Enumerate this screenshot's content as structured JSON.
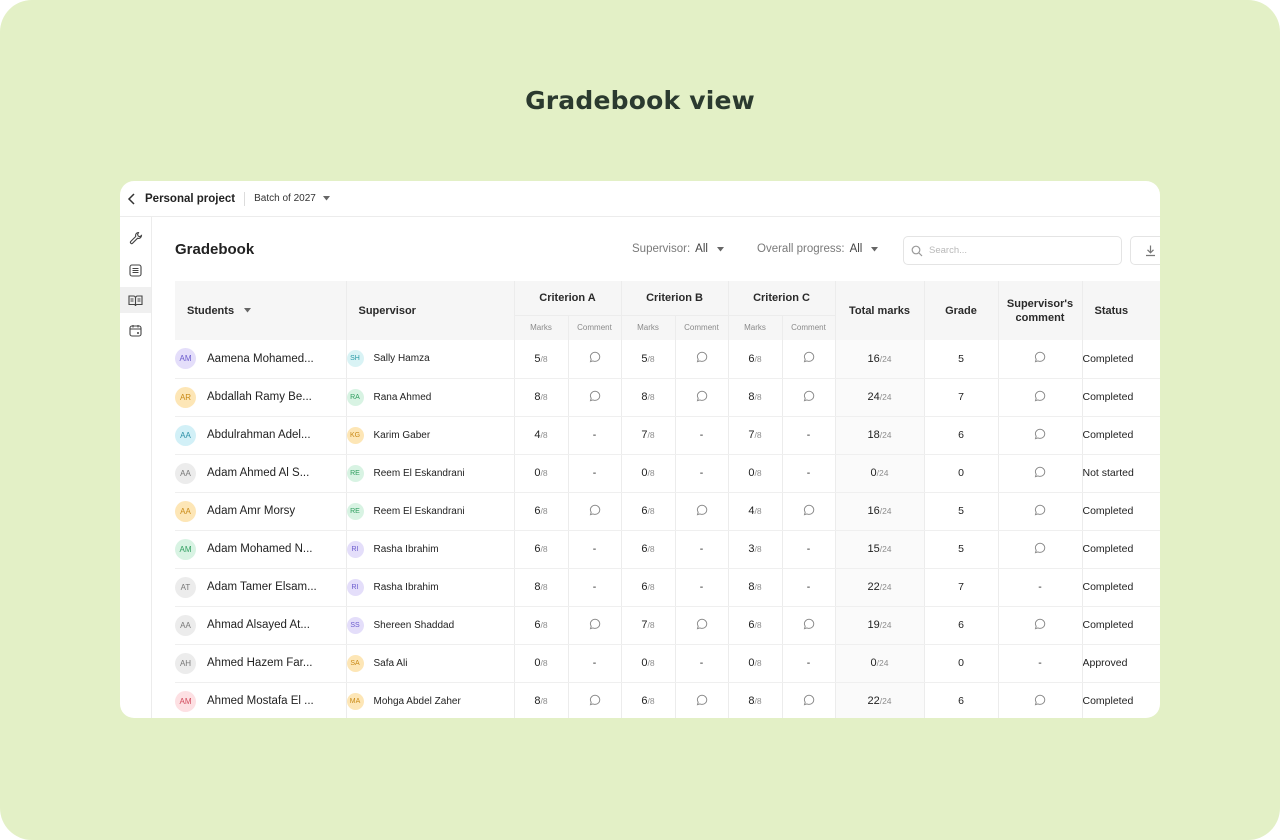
{
  "hero_title": "Gradebook view",
  "topbar": {
    "project": "Personal project",
    "batch": "Batch of 2027"
  },
  "rail": {
    "icons": [
      "wrench-icon",
      "list-icon",
      "book-icon",
      "calendar-icon"
    ],
    "active_index": 2
  },
  "section_title": "Gradebook",
  "filters": {
    "supervisor": {
      "label": "Supervisor:",
      "value": "All"
    },
    "progress": {
      "label": "Overall progress:",
      "value": "All"
    }
  },
  "search": {
    "placeholder": "Search..."
  },
  "table": {
    "headers": {
      "students": "Students",
      "supervisor": "Supervisor",
      "criterion_a": "Criterion A",
      "criterion_b": "Criterion B",
      "criterion_c": "Criterion C",
      "marks": "Marks",
      "comment": "Comment",
      "total": "Total marks",
      "grade": "Grade",
      "supervisor_comment": "Supervisor's comment",
      "status": "Status"
    },
    "criterion_max": "/8",
    "total_max": "/24",
    "rows": [
      {
        "initials": "AM",
        "avatar_color": "#e4defa",
        "avatar_text": "#6a5acd",
        "name": "Aamena Mohamed...",
        "sup_initials": "SH",
        "sup_color": "#d9f3f5",
        "sup_text": "#2a9aa6",
        "supervisor": "Sally Hamza",
        "a": "5",
        "a_c": true,
        "b": "5",
        "b_c": true,
        "c": "6",
        "c_c": true,
        "total": "16",
        "grade": "5",
        "sup_c": true,
        "status": "Completed"
      },
      {
        "initials": "AR",
        "avatar_color": "#fde6b6",
        "avatar_text": "#c98a17",
        "name": "Abdallah Ramy Be...",
        "sup_initials": "RA",
        "sup_color": "#d8f3e3",
        "sup_text": "#2f9e5f",
        "supervisor": "Rana Ahmed",
        "a": "8",
        "a_c": true,
        "b": "8",
        "b_c": true,
        "c": "8",
        "c_c": true,
        "total": "24",
        "grade": "7",
        "sup_c": true,
        "status": "Completed"
      },
      {
        "initials": "AA",
        "avatar_color": "#d2f0f7",
        "avatar_text": "#2b8fa6",
        "name": "Abdulrahman Adel...",
        "sup_initials": "KG",
        "sup_color": "#fde6b6",
        "sup_text": "#c98a17",
        "supervisor": "Karim Gaber",
        "a": "4",
        "a_c": false,
        "b": "7",
        "b_c": false,
        "c": "7",
        "c_c": false,
        "total": "18",
        "grade": "6",
        "sup_c": true,
        "status": "Completed"
      },
      {
        "initials": "AA",
        "avatar_color": "#ececec",
        "avatar_text": "#777777",
        "name": "Adam Ahmed Al S...",
        "sup_initials": "RE",
        "sup_color": "#d8f3e3",
        "sup_text": "#2f9e5f",
        "supervisor": "Reem El Eskandrani",
        "a": "0",
        "a_c": false,
        "b": "0",
        "b_c": false,
        "c": "0",
        "c_c": false,
        "total": "0",
        "grade": "0",
        "sup_c": true,
        "status": "Not started"
      },
      {
        "initials": "AA",
        "avatar_color": "#fde6b6",
        "avatar_text": "#c98a17",
        "name": "Adam Amr Morsy",
        "sup_initials": "RE",
        "sup_color": "#d8f3e3",
        "sup_text": "#2f9e5f",
        "supervisor": "Reem El Eskandrani",
        "a": "6",
        "a_c": true,
        "b": "6",
        "b_c": true,
        "c": "4",
        "c_c": true,
        "total": "16",
        "grade": "5",
        "sup_c": true,
        "status": "Completed"
      },
      {
        "initials": "AM",
        "avatar_color": "#d8f3e3",
        "avatar_text": "#2f9e5f",
        "name": "Adam Mohamed N...",
        "sup_initials": "RI",
        "sup_color": "#e4defa",
        "sup_text": "#6a5acd",
        "supervisor": "Rasha Ibrahim",
        "a": "6",
        "a_c": false,
        "b": "6",
        "b_c": false,
        "c": "3",
        "c_c": false,
        "total": "15",
        "grade": "5",
        "sup_c": true,
        "status": "Completed"
      },
      {
        "initials": "AT",
        "avatar_color": "#ececec",
        "avatar_text": "#777777",
        "name": "Adam Tamer Elsam...",
        "sup_initials": "RI",
        "sup_color": "#e4defa",
        "sup_text": "#6a5acd",
        "supervisor": "Rasha Ibrahim",
        "a": "8",
        "a_c": false,
        "b": "6",
        "b_c": false,
        "c": "8",
        "c_c": false,
        "total": "22",
        "grade": "7",
        "sup_c": false,
        "status": "Completed"
      },
      {
        "initials": "AA",
        "avatar_color": "#ececec",
        "avatar_text": "#777777",
        "name": "Ahmad Alsayed At...",
        "sup_initials": "SS",
        "sup_color": "#e4defa",
        "sup_text": "#6a5acd",
        "supervisor": "Shereen Shaddad",
        "a": "6",
        "a_c": true,
        "b": "7",
        "b_c": true,
        "c": "6",
        "c_c": true,
        "total": "19",
        "grade": "6",
        "sup_c": true,
        "status": "Completed"
      },
      {
        "initials": "AH",
        "avatar_color": "#ececec",
        "avatar_text": "#777777",
        "name": "Ahmed Hazem Far...",
        "sup_initials": "SA",
        "sup_color": "#fde6b6",
        "sup_text": "#c98a17",
        "supervisor": "Safa Ali",
        "a": "0",
        "a_c": false,
        "b": "0",
        "b_c": false,
        "c": "0",
        "c_c": false,
        "total": "0",
        "grade": "0",
        "sup_c": false,
        "status": "Approved"
      },
      {
        "initials": "AM",
        "avatar_color": "#fde0e3",
        "avatar_text": "#d1495b",
        "name": "Ahmed Mostafa El ...",
        "sup_initials": "MA",
        "sup_color": "#fde6b6",
        "sup_text": "#c98a17",
        "supervisor": "Mohga Abdel Zaher",
        "a": "8",
        "a_c": true,
        "b": "6",
        "b_c": true,
        "c": "8",
        "c_c": true,
        "total": "22",
        "grade": "6",
        "sup_c": true,
        "status": "Completed"
      }
    ]
  }
}
